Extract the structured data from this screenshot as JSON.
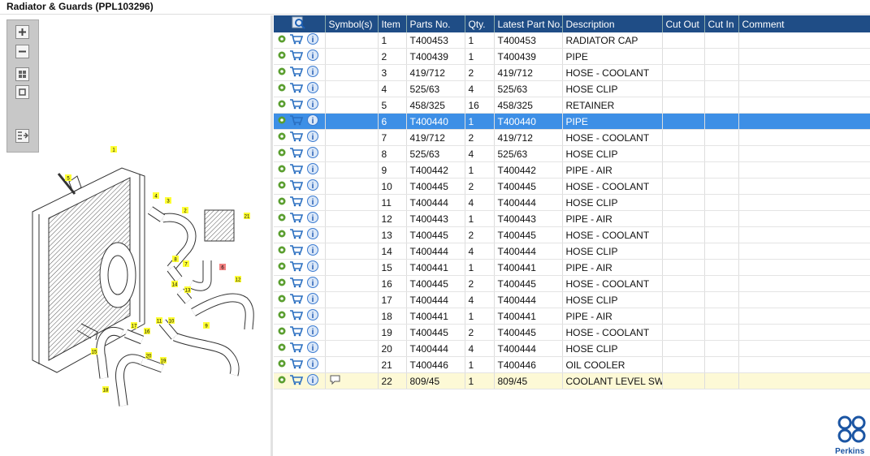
{
  "header": {
    "title": "Radiator & Guards (PPL103296)"
  },
  "table": {
    "columns": [
      "Symbol(s)",
      "Item",
      "Parts No.",
      "Qty.",
      "Latest Part No.",
      "Description",
      "Cut Out",
      "Cut In",
      "Comment"
    ],
    "rows": [
      [
        1,
        "T400453",
        1,
        "T400453",
        "RADIATOR CAP"
      ],
      [
        2,
        "T400439",
        1,
        "T400439",
        "PIPE"
      ],
      [
        3,
        "419/712",
        2,
        "419/712",
        "HOSE - COOLANT"
      ],
      [
        4,
        "525/63",
        4,
        "525/63",
        "HOSE CLIP"
      ],
      [
        5,
        "458/325",
        16,
        "458/325",
        "RETAINER"
      ],
      [
        6,
        "T400440",
        1,
        "T400440",
        "PIPE"
      ],
      [
        7,
        "419/712",
        2,
        "419/712",
        "HOSE - COOLANT"
      ],
      [
        8,
        "525/63",
        4,
        "525/63",
        "HOSE CLIP"
      ],
      [
        9,
        "T400442",
        1,
        "T400442",
        "PIPE - AIR"
      ],
      [
        10,
        "T400445",
        2,
        "T400445",
        "HOSE - COOLANT"
      ],
      [
        11,
        "T400444",
        4,
        "T400444",
        "HOSE CLIP"
      ],
      [
        12,
        "T400443",
        1,
        "T400443",
        "PIPE - AIR"
      ],
      [
        13,
        "T400445",
        2,
        "T400445",
        "HOSE - COOLANT"
      ],
      [
        14,
        "T400444",
        4,
        "T400444",
        "HOSE CLIP"
      ],
      [
        15,
        "T400441",
        1,
        "T400441",
        "PIPE - AIR"
      ],
      [
        16,
        "T400445",
        2,
        "T400445",
        "HOSE - COOLANT"
      ],
      [
        17,
        "T400444",
        4,
        "T400444",
        "HOSE CLIP"
      ],
      [
        18,
        "T400441",
        1,
        "T400441",
        "PIPE - AIR"
      ],
      [
        19,
        "T400445",
        2,
        "T400445",
        "HOSE - COOLANT"
      ],
      [
        20,
        "T400444",
        4,
        "T400444",
        "HOSE CLIP"
      ],
      [
        21,
        "T400446",
        1,
        "T400446",
        "OIL COOLER"
      ],
      [
        22,
        "809/45",
        1,
        "809/45",
        "COOLANT LEVEL SWITC"
      ]
    ]
  },
  "diagram": {
    "callouts": [
      "1",
      "5",
      "4",
      "3",
      "2",
      "21",
      "8",
      "7",
      "6",
      "14",
      "13",
      "12",
      "11",
      "10",
      "17",
      "16",
      "9",
      "15",
      "20",
      "19",
      "18"
    ]
  },
  "logo": {
    "text": "Perkins"
  }
}
